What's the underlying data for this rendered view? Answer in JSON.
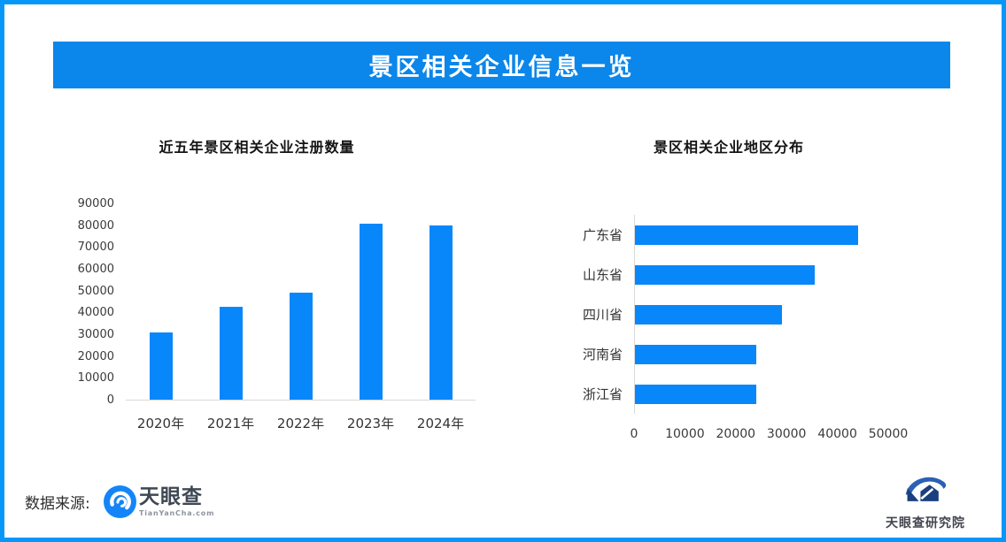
{
  "header": {
    "title": "景区相关企业信息一览"
  },
  "chart_data": [
    {
      "type": "bar",
      "title": "近五年景区相关企业注册数量",
      "categories": [
        "2020年",
        "2021年",
        "2022年",
        "2023年",
        "2024年"
      ],
      "values": [
        31000,
        42500,
        49000,
        80500,
        80000
      ],
      "ylim": [
        0,
        90000
      ],
      "y_ticks": [
        0,
        10000,
        20000,
        30000,
        40000,
        50000,
        60000,
        70000,
        80000,
        90000
      ],
      "xlabel": "",
      "ylabel": "",
      "grid": "off",
      "legend": "none",
      "bar_color": "#0887fa"
    },
    {
      "type": "bar",
      "orientation": "horizontal",
      "title": "景区相关企业地区分布",
      "categories": [
        "广东省",
        "山东省",
        "四川省",
        "河南省",
        "浙江省"
      ],
      "values": [
        44000,
        35500,
        29000,
        24000,
        24000
      ],
      "xlim": [
        0,
        50000
      ],
      "x_ticks": [
        0,
        10000,
        20000,
        30000,
        40000,
        50000
      ],
      "xlabel": "",
      "ylabel": "",
      "grid": "off",
      "legend": "none",
      "bar_color": "#0887fa"
    }
  ],
  "footer": {
    "source_label": "数据来源:",
    "tianyancha_logo_icon": "tianyancha-eye-logo",
    "tianyancha_name": "天眼查",
    "tianyancha_domain": "TianYanCha.com",
    "institute_logo_icon": "tianyancha-institute-logo",
    "institute_name": "天眼查研究院"
  },
  "colors": {
    "page_border": "#0598f8",
    "banner": "#0b86ea",
    "bar": "#0887fa",
    "axis_line": "#d9d9d9",
    "banner_text": "#ffffff",
    "tick_text": "#3a3a3a"
  }
}
